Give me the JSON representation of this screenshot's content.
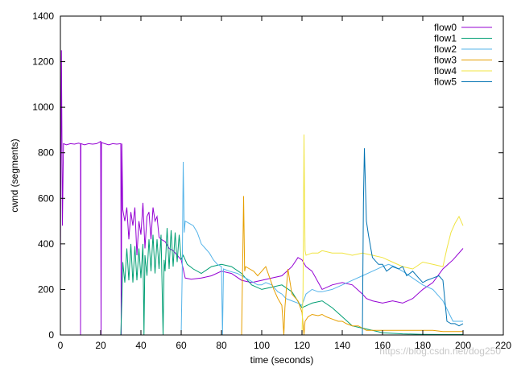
{
  "chart_data": {
    "type": "line",
    "title": "",
    "xlabel": "time (seconds)",
    "ylabel": "cwnd (segments)",
    "xlim": [
      0,
      220
    ],
    "ylim": [
      0,
      1400
    ],
    "xticks": [
      0,
      20,
      40,
      60,
      80,
      100,
      120,
      140,
      160,
      180,
      200,
      220
    ],
    "yticks": [
      0,
      200,
      400,
      600,
      800,
      1000,
      1200,
      1400
    ],
    "grid": false,
    "legend_position": "top-right",
    "series": [
      {
        "name": "flow0",
        "color": "#9400d3",
        "points": [
          [
            0,
            320
          ],
          [
            0.5,
            1250
          ],
          [
            1,
            480
          ],
          [
            1.5,
            840
          ],
          [
            3,
            835
          ],
          [
            5,
            840
          ],
          [
            7,
            838
          ],
          [
            9,
            842
          ],
          [
            10,
            840
          ],
          [
            10,
            0
          ],
          [
            10.2,
            840
          ],
          [
            12,
            835
          ],
          [
            14,
            840
          ],
          [
            16,
            838
          ],
          [
            18,
            840
          ],
          [
            20,
            850
          ],
          [
            20.2,
            0
          ],
          [
            20.4,
            845
          ],
          [
            22,
            840
          ],
          [
            24,
            835
          ],
          [
            26,
            840
          ],
          [
            28,
            838
          ],
          [
            30,
            840
          ],
          [
            30.2,
            0
          ],
          [
            30.5,
            840
          ],
          [
            31,
            550
          ],
          [
            32,
            500
          ],
          [
            33,
            560
          ],
          [
            34,
            420
          ],
          [
            35,
            540
          ],
          [
            36,
            480
          ],
          [
            37,
            560
          ],
          [
            38,
            350
          ],
          [
            39,
            500
          ],
          [
            40,
            440
          ],
          [
            41,
            580
          ],
          [
            42,
            380
          ],
          [
            43,
            520
          ],
          [
            44,
            540
          ],
          [
            45,
            420
          ],
          [
            46,
            560
          ],
          [
            47,
            500
          ],
          [
            48,
            520
          ],
          [
            49,
            430
          ],
          [
            50,
            420
          ],
          [
            52,
            410
          ],
          [
            54,
            380
          ],
          [
            56,
            370
          ],
          [
            58,
            350
          ],
          [
            60,
            330
          ],
          [
            62,
            250
          ],
          [
            65,
            245
          ],
          [
            70,
            250
          ],
          [
            75,
            260
          ],
          [
            80,
            280
          ],
          [
            85,
            270
          ],
          [
            90,
            240
          ],
          [
            95,
            230
          ],
          [
            100,
            240
          ],
          [
            105,
            250
          ],
          [
            110,
            260
          ],
          [
            115,
            300
          ],
          [
            118,
            340
          ],
          [
            120,
            330
          ],
          [
            122,
            300
          ],
          [
            125,
            280
          ],
          [
            130,
            200
          ],
          [
            135,
            220
          ],
          [
            140,
            230
          ],
          [
            145,
            220
          ],
          [
            150,
            180
          ],
          [
            152,
            160
          ],
          [
            155,
            150
          ],
          [
            160,
            140
          ],
          [
            165,
            150
          ],
          [
            170,
            140
          ],
          [
            175,
            160
          ],
          [
            180,
            200
          ],
          [
            185,
            230
          ],
          [
            190,
            290
          ],
          [
            195,
            330
          ],
          [
            200,
            380
          ]
        ]
      },
      {
        "name": "flow1",
        "color": "#009e73",
        "points": [
          [
            30,
            0
          ],
          [
            30.5,
            150
          ],
          [
            31,
            320
          ],
          [
            32,
            230
          ],
          [
            33,
            380
          ],
          [
            34,
            240
          ],
          [
            35,
            400
          ],
          [
            36,
            230
          ],
          [
            37,
            390
          ],
          [
            38,
            240
          ],
          [
            39,
            380
          ],
          [
            40,
            250
          ],
          [
            41,
            400
          ],
          [
            41.5,
            0
          ],
          [
            42,
            350
          ],
          [
            43,
            260
          ],
          [
            44,
            420
          ],
          [
            45,
            280
          ],
          [
            46,
            440
          ],
          [
            47,
            270
          ],
          [
            48,
            420
          ],
          [
            49,
            290
          ],
          [
            50,
            440
          ],
          [
            51,
            0
          ],
          [
            51.5,
            330
          ],
          [
            52,
            280
          ],
          [
            53,
            470
          ],
          [
            54,
            290
          ],
          [
            55,
            460
          ],
          [
            56,
            300
          ],
          [
            57,
            450
          ],
          [
            58,
            320
          ],
          [
            59,
            440
          ],
          [
            60,
            330
          ],
          [
            61,
            350
          ],
          [
            63,
            310
          ],
          [
            66,
            290
          ],
          [
            70,
            270
          ],
          [
            75,
            300
          ],
          [
            80,
            310
          ],
          [
            85,
            300
          ],
          [
            90,
            270
          ],
          [
            95,
            220
          ],
          [
            100,
            200
          ],
          [
            105,
            210
          ],
          [
            110,
            220
          ],
          [
            115,
            190
          ],
          [
            120,
            120
          ],
          [
            125,
            140
          ],
          [
            130,
            150
          ],
          [
            135,
            120
          ],
          [
            140,
            80
          ],
          [
            145,
            40
          ],
          [
            150,
            30
          ],
          [
            155,
            20
          ],
          [
            160,
            10
          ],
          [
            170,
            5
          ],
          [
            180,
            3
          ],
          [
            190,
            2
          ],
          [
            200,
            2
          ]
        ]
      },
      {
        "name": "flow2",
        "color": "#56b4e9",
        "points": [
          [
            60,
            0
          ],
          [
            60.5,
            280
          ],
          [
            61,
            760
          ],
          [
            61.5,
            450
          ],
          [
            62,
            500
          ],
          [
            64,
            490
          ],
          [
            66,
            480
          ],
          [
            68,
            450
          ],
          [
            70,
            400
          ],
          [
            72,
            380
          ],
          [
            74,
            360
          ],
          [
            76,
            330
          ],
          [
            78,
            310
          ],
          [
            80,
            300
          ],
          [
            80.5,
            0
          ],
          [
            81,
            290
          ],
          [
            84,
            280
          ],
          [
            88,
            270
          ],
          [
            90,
            260
          ],
          [
            92,
            250
          ],
          [
            94,
            240
          ],
          [
            96,
            230
          ],
          [
            98,
            220
          ],
          [
            100,
            220
          ],
          [
            102,
            230
          ],
          [
            105,
            220
          ],
          [
            108,
            190
          ],
          [
            110,
            180
          ],
          [
            112,
            160
          ],
          [
            115,
            150
          ],
          [
            118,
            140
          ],
          [
            120,
            130
          ],
          [
            122,
            180
          ],
          [
            125,
            200
          ],
          [
            128,
            190
          ],
          [
            130,
            190
          ],
          [
            135,
            200
          ],
          [
            140,
            220
          ],
          [
            145,
            240
          ],
          [
            150,
            260
          ],
          [
            155,
            280
          ],
          [
            160,
            300
          ],
          [
            163,
            310
          ],
          [
            166,
            300
          ],
          [
            170,
            280
          ],
          [
            175,
            250
          ],
          [
            180,
            220
          ],
          [
            185,
            200
          ],
          [
            190,
            150
          ],
          [
            195,
            60
          ],
          [
            200,
            60
          ]
        ]
      },
      {
        "name": "flow3",
        "color": "#e69f00",
        "points": [
          [
            90,
            0
          ],
          [
            90.5,
            300
          ],
          [
            91,
            610
          ],
          [
            91.5,
            280
          ],
          [
            92,
            300
          ],
          [
            94,
            290
          ],
          [
            96,
            280
          ],
          [
            98,
            260
          ],
          [
            100,
            280
          ],
          [
            102,
            300
          ],
          [
            104,
            250
          ],
          [
            106,
            200
          ],
          [
            108,
            160
          ],
          [
            110,
            130
          ],
          [
            111,
            0
          ],
          [
            111.5,
            120
          ],
          [
            113,
            290
          ],
          [
            115,
            180
          ],
          [
            118,
            150
          ],
          [
            120,
            100
          ],
          [
            121,
            0
          ],
          [
            121.5,
            60
          ],
          [
            123,
            80
          ],
          [
            125,
            90
          ],
          [
            128,
            85
          ],
          [
            130,
            90
          ],
          [
            132,
            80
          ],
          [
            135,
            70
          ],
          [
            138,
            60
          ],
          [
            140,
            60
          ],
          [
            142,
            50
          ],
          [
            145,
            40
          ],
          [
            148,
            40
          ],
          [
            150,
            30
          ],
          [
            152,
            20
          ],
          [
            155,
            20
          ],
          [
            160,
            20
          ],
          [
            165,
            20
          ],
          [
            170,
            20
          ],
          [
            175,
            20
          ],
          [
            180,
            20
          ],
          [
            185,
            20
          ],
          [
            190,
            15
          ],
          [
            195,
            15
          ],
          [
            200,
            15
          ]
        ]
      },
      {
        "name": "flow4",
        "color": "#f0e442",
        "points": [
          [
            120,
            0
          ],
          [
            120.5,
            200
          ],
          [
            121,
            880
          ],
          [
            121.5,
            370
          ],
          [
            122,
            350
          ],
          [
            125,
            360
          ],
          [
            128,
            360
          ],
          [
            130,
            370
          ],
          [
            135,
            360
          ],
          [
            140,
            360
          ],
          [
            145,
            350
          ],
          [
            150,
            360
          ],
          [
            155,
            350
          ],
          [
            160,
            340
          ],
          [
            165,
            320
          ],
          [
            170,
            300
          ],
          [
            175,
            290
          ],
          [
            180,
            320
          ],
          [
            185,
            310
          ],
          [
            190,
            300
          ],
          [
            192,
            380
          ],
          [
            194,
            450
          ],
          [
            196,
            490
          ],
          [
            198,
            520
          ],
          [
            200,
            480
          ]
        ]
      },
      {
        "name": "flow5",
        "color": "#0072b2",
        "points": [
          [
            150,
            0
          ],
          [
            150.5,
            580
          ],
          [
            151,
            820
          ],
          [
            152,
            500
          ],
          [
            153,
            440
          ],
          [
            155,
            340
          ],
          [
            158,
            310
          ],
          [
            160,
            310
          ],
          [
            162,
            280
          ],
          [
            165,
            300
          ],
          [
            168,
            290
          ],
          [
            170,
            300
          ],
          [
            172,
            260
          ],
          [
            175,
            280
          ],
          [
            178,
            250
          ],
          [
            180,
            230
          ],
          [
            182,
            240
          ],
          [
            185,
            250
          ],
          [
            188,
            260
          ],
          [
            190,
            240
          ],
          [
            192,
            60
          ],
          [
            194,
            50
          ],
          [
            196,
            50
          ],
          [
            198,
            40
          ],
          [
            200,
            50
          ]
        ]
      }
    ]
  },
  "watermark": "https://blog.csdn.net/dog250"
}
